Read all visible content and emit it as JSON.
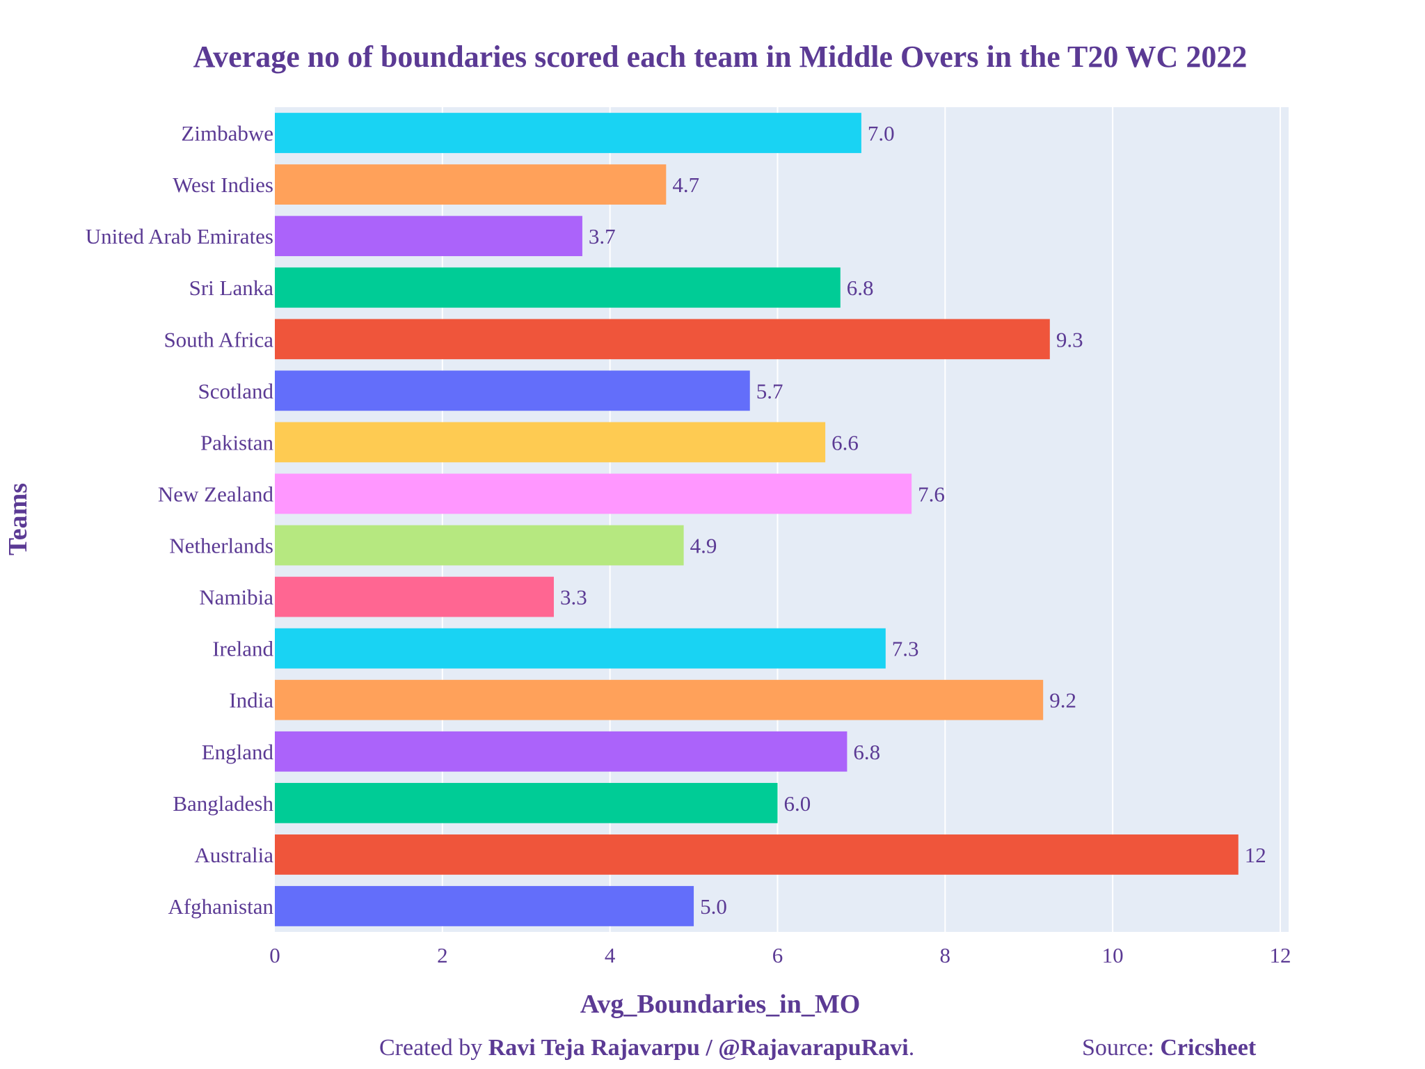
{
  "chart_data": {
    "type": "bar",
    "orientation": "horizontal",
    "title": "Average no of boundaries scored each team in Middle Overs in the T20 WC 2022",
    "xlabel": "Avg_Boundaries_in_MO",
    "ylabel": "Teams",
    "xlim": [
      0,
      12.1
    ],
    "xticks": [
      0,
      2,
      4,
      6,
      8,
      10,
      12
    ],
    "grid": true,
    "categories": [
      "Afghanistan",
      "Australia",
      "Bangladesh",
      "England",
      "India",
      "Ireland",
      "Namibia",
      "Netherlands",
      "New Zealand",
      "Pakistan",
      "Scotland",
      "South Africa",
      "Sri Lanka",
      "United Arab Emirates",
      "West Indies",
      "Zimbabwe"
    ],
    "values": [
      5.0,
      11.5,
      6.0,
      6.83,
      9.17,
      7.29,
      3.33,
      4.88,
      7.6,
      6.57,
      5.67,
      9.25,
      6.75,
      3.67,
      4.67,
      7.0
    ],
    "value_labels": [
      "5.0",
      "12",
      "6.0",
      "6.8",
      "9.2",
      "7.3",
      "3.3",
      "4.9",
      "7.6",
      "6.6",
      "5.7",
      "9.3",
      "6.8",
      "3.7",
      "4.7",
      "7.0"
    ],
    "colors": [
      "#636EFA",
      "#EF553B",
      "#00CC96",
      "#AB63FA",
      "#FFA15A",
      "#19D3F3",
      "#FF6692",
      "#B6E880",
      "#FF97FF",
      "#FECB52",
      "#636EFA",
      "#EF553B",
      "#00CC96",
      "#AB63FA",
      "#FFA15A",
      "#19D3F3"
    ]
  },
  "footer": {
    "created_prefix": "Created by ",
    "author": "Ravi Teja Rajavarpu / @RajavarapuRavi",
    "created_suffix": ".",
    "source_prefix": "Source: ",
    "source": "Cricsheet"
  },
  "style": {
    "text_color": "#5b3a94",
    "plot_bg": "#E5ECF6",
    "grid_color": "#ffffff"
  }
}
